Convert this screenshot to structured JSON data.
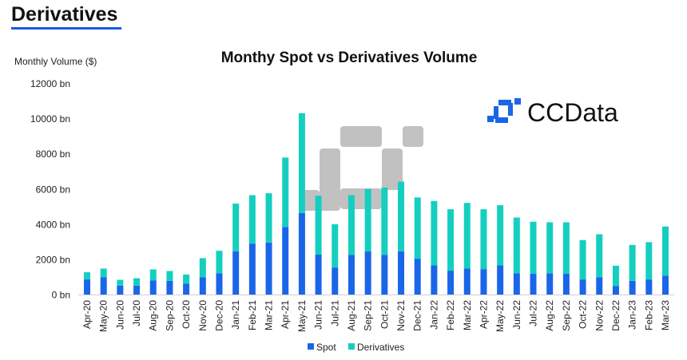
{
  "heading": "Derivatives",
  "logo_text": "CCData",
  "chart_data": {
    "type": "bar",
    "stacked": true,
    "title": "Monthy Spot vs Derivatives Volume",
    "ylabel": "Monthly Volume ($)",
    "xlabel": "",
    "ylim": [
      0,
      12000
    ],
    "yticks": [
      "0 bn",
      "2000 bn",
      "4000 bn",
      "6000 bn",
      "8000 bn",
      "10000 bn",
      "12000 bn"
    ],
    "ytick_values": [
      0,
      2000,
      4000,
      6000,
      8000,
      10000,
      12000
    ],
    "grid": false,
    "legend_position": "bottom",
    "categories": [
      "Apr-20",
      "May-20",
      "Jun-20",
      "Jul-20",
      "Aug-20",
      "Sep-20",
      "Oct-20",
      "Nov-20",
      "Dec-20",
      "Jan-21",
      "Feb-21",
      "Mar-21",
      "Apr-21",
      "May-21",
      "Jun-21",
      "Jul-21",
      "Aug-21",
      "Sep-21",
      "Oct-21",
      "Nov-21",
      "Dec-21",
      "Jan-22",
      "Feb-22",
      "Mar-22",
      "Apr-22",
      "May-22",
      "Jun-22",
      "Jul-22",
      "Aug-22",
      "Sep-22",
      "Oct-22",
      "Nov-22",
      "Dec-22",
      "Jan-23",
      "Feb-23",
      "Mar-23"
    ],
    "series": [
      {
        "name": "Spot",
        "color": "#1a66e8",
        "values": [
          880,
          1000,
          530,
          530,
          830,
          800,
          650,
          1000,
          1230,
          2470,
          2920,
          2980,
          3860,
          4660,
          2300,
          1560,
          2280,
          2470,
          2280,
          2470,
          2060,
          1690,
          1380,
          1500,
          1470,
          1690,
          1230,
          1200,
          1230,
          1200,
          880,
          1010,
          500,
          800,
          880,
          1100
        ]
      },
      {
        "name": "Derivatives",
        "color": "#14cfc0",
        "values": [
          410,
          500,
          330,
          420,
          620,
          560,
          510,
          1090,
          1280,
          2720,
          2750,
          2800,
          3950,
          5670,
          3340,
          2460,
          3390,
          3550,
          3820,
          3970,
          3480,
          3650,
          3490,
          3730,
          3400,
          3410,
          3170,
          2960,
          2900,
          2930,
          2240,
          2440,
          1160,
          2040,
          2120,
          2790
        ]
      }
    ]
  }
}
